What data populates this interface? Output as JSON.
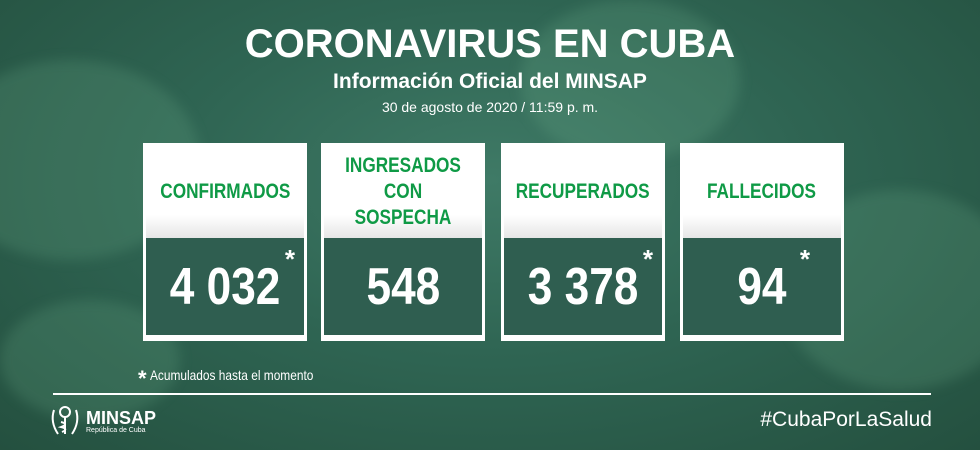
{
  "header": {
    "title": "CORONAVIRUS EN CUBA",
    "subtitle": "Información Oficial del MINSAP",
    "date": "30 de agosto de 2020 / 11:59 p. m."
  },
  "cards": [
    {
      "label": "CONFIRMADOS",
      "value": "4 032",
      "asterisk": "*"
    },
    {
      "label": "INGRESADOS CON SOSPECHA",
      "value": "548",
      "asterisk": ""
    },
    {
      "label": "RECUPERADOS",
      "value": "3 378",
      "asterisk": "*"
    },
    {
      "label": "FALLECIDOS",
      "value": "94",
      "asterisk": "*"
    }
  ],
  "footnote": {
    "asterisk": "*",
    "text": "Acumulados hasta el momento"
  },
  "footer": {
    "logo_name": "MINSAP",
    "logo_sub": "República de Cuba",
    "hashtag": "#CubaPorLaSalud"
  },
  "colors": {
    "label_green": "#0f9a46",
    "background": "#2f6553"
  }
}
